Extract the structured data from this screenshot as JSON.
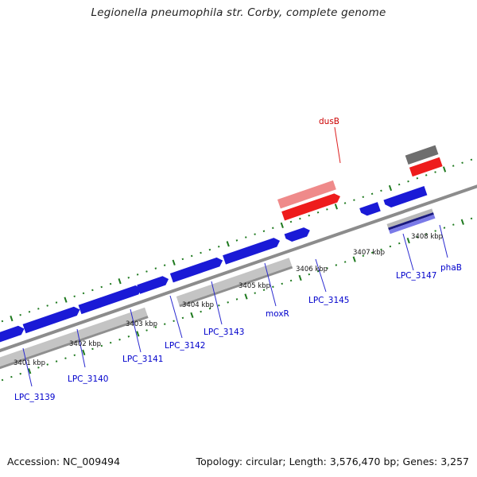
{
  "title": "Legionella pneumophila str. Corby, complete genome",
  "footer": {
    "accession": "Accession: NC_009494",
    "summary": "Topology: circular; Length: 3,576,470 bp; Genes: 3,257"
  },
  "colors": {
    "cds_forward": "#1a1ad6",
    "cds_reverse": "#1a1ad6",
    "rna": "#ee1c1c",
    "rna_light": "#ef8a8a",
    "gene_gray": "#bdbdbd",
    "backbone": "#8c8c8c",
    "tick": "#1f7a1f",
    "label_blue": "#0000cc",
    "label_red": "#cc0000"
  },
  "ticks": [
    {
      "label": "3401 kbp"
    },
    {
      "label": "3402 kbp"
    },
    {
      "label": "3403 kbp"
    },
    {
      "label": "3404 kbp"
    },
    {
      "label": "3405 kbp"
    },
    {
      "label": "3406 kbp"
    },
    {
      "label": "3407 kbp"
    },
    {
      "label": "3408 kbp"
    }
  ],
  "gene_labels": [
    {
      "name": "LPC_3139",
      "color": "blue"
    },
    {
      "name": "LPC_3140",
      "color": "blue"
    },
    {
      "name": "LPC_3141",
      "color": "blue"
    },
    {
      "name": "LPC_3142",
      "color": "blue"
    },
    {
      "name": "LPC_3143",
      "color": "blue"
    },
    {
      "name": "moxR",
      "color": "blue"
    },
    {
      "name": "LPC_3145",
      "color": "blue"
    },
    {
      "name": "LPC_3147",
      "color": "blue"
    },
    {
      "name": "phaB",
      "color": "blue"
    },
    {
      "name": "dusB",
      "color": "red"
    }
  ]
}
